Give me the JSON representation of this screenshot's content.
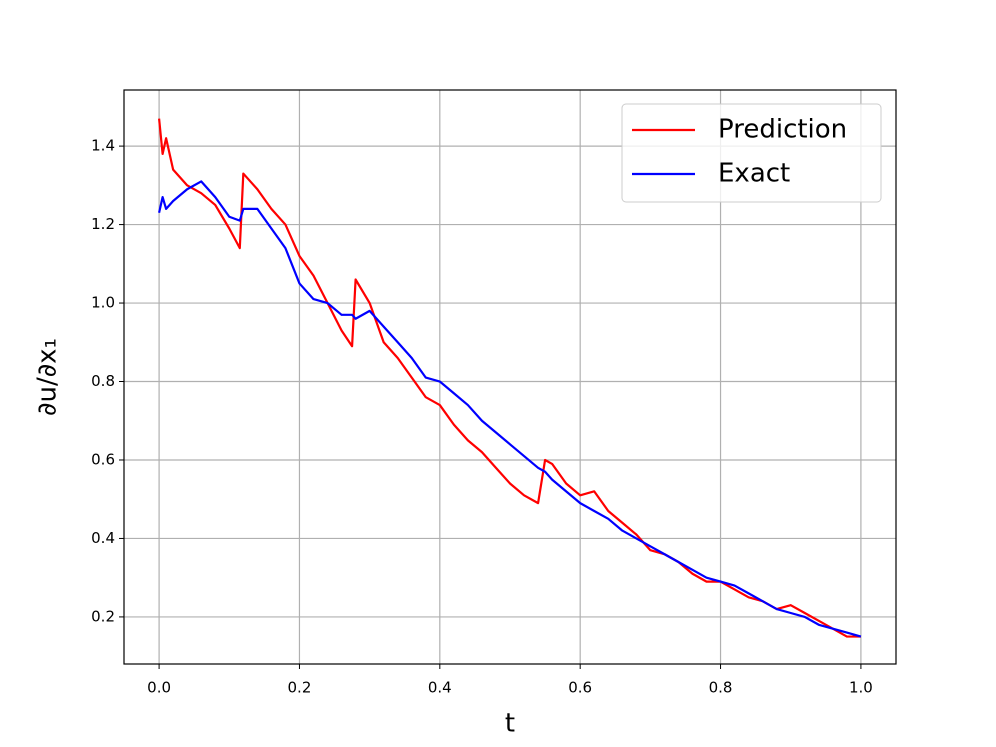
{
  "chart_data": {
    "type": "line",
    "xlabel": "t",
    "ylabel": "∂u/∂x₁",
    "x": [
      0,
      0.005,
      0.01,
      0.02,
      0.04,
      0.06,
      0.08,
      0.1,
      0.115,
      0.12,
      0.14,
      0.16,
      0.18,
      0.2,
      0.22,
      0.24,
      0.26,
      0.275,
      0.28,
      0.3,
      0.31,
      0.32,
      0.34,
      0.36,
      0.38,
      0.4,
      0.42,
      0.44,
      0.46,
      0.48,
      0.5,
      0.52,
      0.54,
      0.55,
      0.56,
      0.58,
      0.6,
      0.62,
      0.64,
      0.66,
      0.68,
      0.7,
      0.72,
      0.74,
      0.76,
      0.78,
      0.8,
      0.82,
      0.84,
      0.86,
      0.88,
      0.9,
      0.92,
      0.94,
      0.96,
      0.98,
      1.0
    ],
    "series": [
      {
        "name": "Prediction",
        "color": "#ff0000",
        "values": [
          1.47,
          1.38,
          1.42,
          1.34,
          1.3,
          1.28,
          1.25,
          1.19,
          1.14,
          1.33,
          1.29,
          1.24,
          1.2,
          1.12,
          1.07,
          1.0,
          0.93,
          0.89,
          1.06,
          1.0,
          0.95,
          0.9,
          0.86,
          0.81,
          0.76,
          0.74,
          0.69,
          0.65,
          0.62,
          0.58,
          0.54,
          0.51,
          0.49,
          0.6,
          0.59,
          0.54,
          0.51,
          0.52,
          0.47,
          0.44,
          0.41,
          0.37,
          0.36,
          0.34,
          0.31,
          0.29,
          0.29,
          0.27,
          0.25,
          0.24,
          0.22,
          0.23,
          0.21,
          0.19,
          0.17,
          0.15,
          0.15
        ]
      },
      {
        "name": "Exact",
        "color": "#0000ff",
        "values": [
          1.23,
          1.27,
          1.24,
          1.26,
          1.29,
          1.31,
          1.27,
          1.22,
          1.21,
          1.24,
          1.24,
          1.19,
          1.14,
          1.05,
          1.01,
          1.0,
          0.97,
          0.97,
          0.96,
          0.98,
          0.96,
          0.94,
          0.9,
          0.86,
          0.81,
          0.8,
          0.77,
          0.74,
          0.7,
          0.67,
          0.64,
          0.61,
          0.58,
          0.57,
          0.55,
          0.52,
          0.49,
          0.47,
          0.45,
          0.42,
          0.4,
          0.38,
          0.36,
          0.34,
          0.32,
          0.3,
          0.29,
          0.28,
          0.26,
          0.24,
          0.22,
          0.21,
          0.2,
          0.18,
          0.17,
          0.16,
          0.15
        ]
      }
    ],
    "xlim": [
      -0.05,
      1.05
    ],
    "ylim": [
      0.08,
      1.543
    ],
    "xticks": [
      {
        "value": 0,
        "label": "0.0"
      },
      0.2,
      0.4,
      0.6,
      0.8,
      {
        "value": 1,
        "label": "1.0"
      }
    ],
    "yticks": [
      0.2,
      0.4,
      0.6,
      0.8,
      {
        "value": 1,
        "label": "1.0"
      },
      1.2,
      1.4
    ],
    "grid": true,
    "legend": "upper right"
  }
}
